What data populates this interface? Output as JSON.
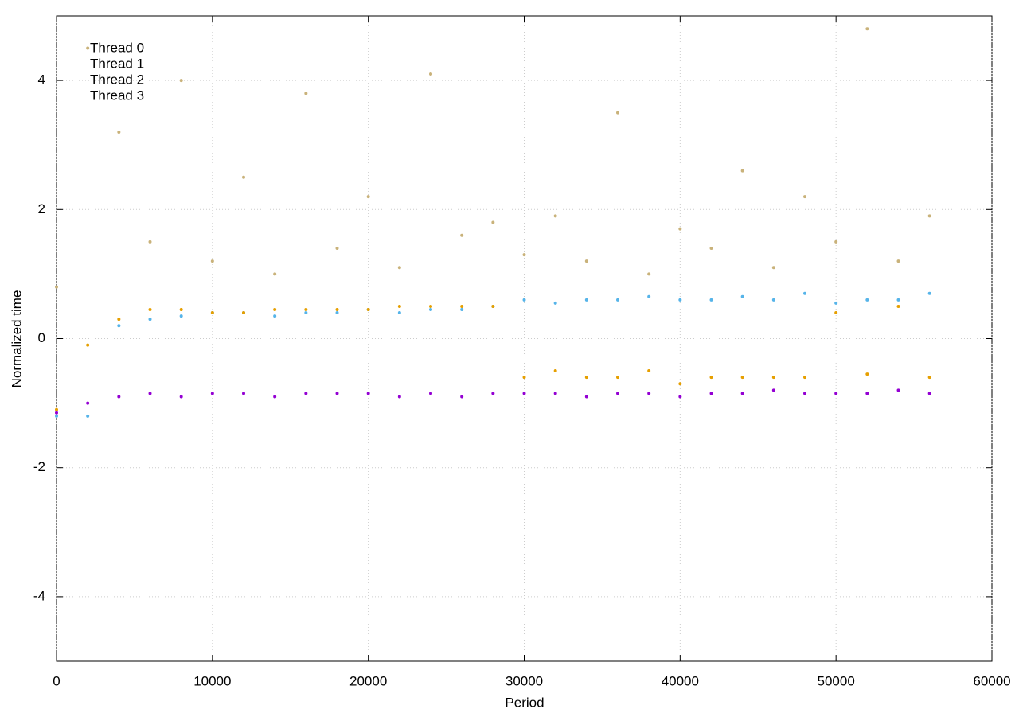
{
  "chart_data": {
    "type": "scatter",
    "xlabel": "Period",
    "ylabel": "Normalized time",
    "x": [
      0,
      2000,
      4000,
      6000,
      8000,
      10000,
      12000,
      14000,
      16000,
      18000,
      20000,
      22000,
      24000,
      26000,
      28000,
      30000,
      32000,
      34000,
      36000,
      38000,
      40000,
      42000,
      44000,
      46000,
      48000,
      50000,
      52000,
      54000,
      56000
    ],
    "series": [
      {
        "name": "Thread 0",
        "color": "#9400d3",
        "values": [
          -1.15,
          -1.0,
          -0.9,
          -0.85,
          -0.9,
          -0.85,
          -0.85,
          -0.9,
          -0.85,
          -0.85,
          -0.85,
          -0.9,
          -0.85,
          -0.9,
          -0.85,
          -0.85,
          -0.85,
          -0.9,
          -0.85,
          -0.85,
          -0.9,
          -0.85,
          -0.85,
          -0.8,
          -0.85,
          -0.85,
          -0.85,
          -0.8,
          -0.85
        ]
      },
      {
        "name": "Thread 1",
        "color": "#56b4e9",
        "values": [
          -1.2,
          -1.2,
          0.2,
          0.3,
          0.35,
          0.4,
          0.4,
          0.35,
          0.4,
          0.4,
          0.45,
          0.4,
          0.45,
          0.45,
          0.5,
          0.6,
          0.55,
          0.6,
          0.6,
          0.65,
          0.6,
          0.6,
          0.65,
          0.6,
          0.7,
          0.55,
          0.6,
          0.6,
          0.7
        ]
      },
      {
        "name": "Thread 2",
        "color": "#e69f00",
        "values": [
          -1.1,
          -0.1,
          0.3,
          0.45,
          0.45,
          0.4,
          0.4,
          0.45,
          0.45,
          0.45,
          0.45,
          0.5,
          0.5,
          0.5,
          0.5,
          -0.6,
          -0.5,
          -0.6,
          -0.6,
          -0.5,
          -0.7,
          -0.6,
          -0.6,
          -0.6,
          -0.6,
          0.4,
          -0.55,
          0.5,
          -0.6
        ]
      },
      {
        "name": "Thread 3",
        "color": "#c9b27a",
        "values": [
          0.8,
          4.5,
          3.2,
          1.5,
          4.0,
          1.2,
          2.5,
          1.0,
          3.8,
          1.4,
          2.2,
          1.1,
          4.1,
          1.6,
          1.8,
          1.3,
          1.9,
          1.2,
          3.5,
          1.0,
          1.7,
          1.4,
          2.6,
          1.1,
          2.2,
          1.5,
          4.8,
          1.2,
          1.9
        ]
      }
    ],
    "xlim": [
      0,
      60000
    ],
    "xticks": [
      0,
      10000,
      20000,
      30000,
      40000,
      50000,
      60000
    ],
    "ylim": [
      -5,
      5
    ],
    "yticks": [
      -4,
      -2,
      0,
      2,
      4
    ],
    "grid": true,
    "legend": "top-left"
  }
}
